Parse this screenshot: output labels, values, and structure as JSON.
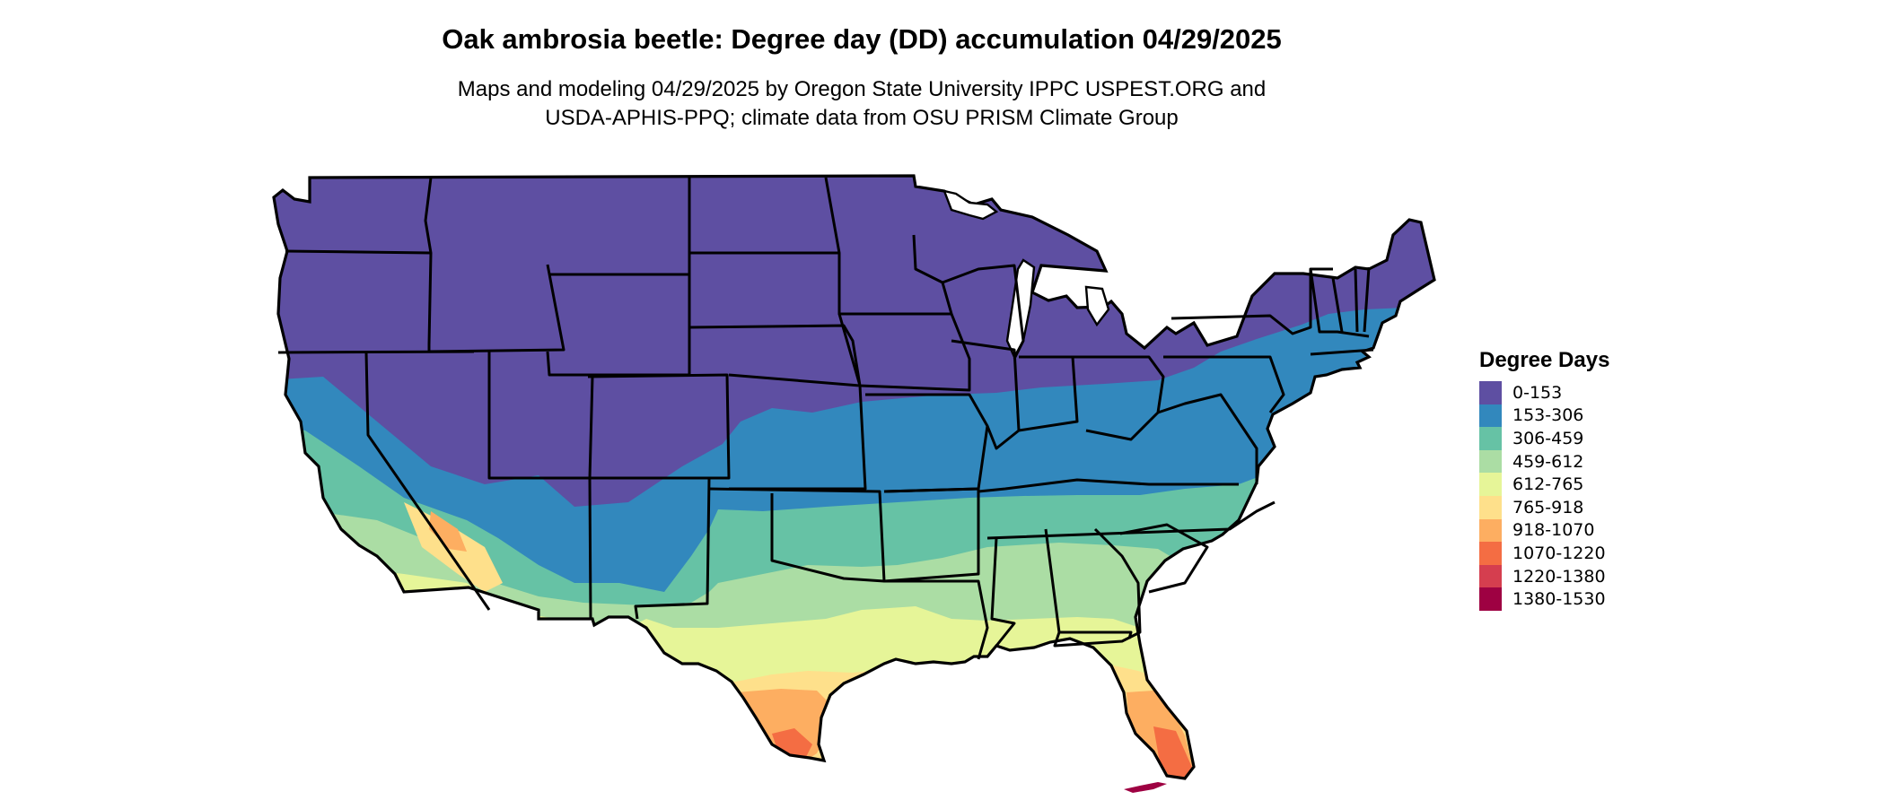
{
  "header": {
    "title": "Oak ambrosia beetle: Degree day (DD) accumulation 04/29/2025",
    "subtitle_line1": "Maps and modeling 04/29/2025 by Oregon State University IPPC USPEST.ORG and",
    "subtitle_line2": "USDA-APHIS-PPQ; climate data from OSU PRISM Climate Group"
  },
  "legend": {
    "title": "Degree Days",
    "items": [
      {
        "label": "0-153",
        "color": "#5e4fa2"
      },
      {
        "label": "153-306",
        "color": "#3288bd"
      },
      {
        "label": "306-459",
        "color": "#66c2a5"
      },
      {
        "label": "459-612",
        "color": "#abdda4"
      },
      {
        "label": "612-765",
        "color": "#e6f598"
      },
      {
        "label": "765-918",
        "color": "#fee08b"
      },
      {
        "label": "918-1070",
        "color": "#fdae61"
      },
      {
        "label": "1070-1220",
        "color": "#f46d43"
      },
      {
        "label": "1220-1380",
        "color": "#d53e4f"
      },
      {
        "label": "1380-1530",
        "color": "#9e0142"
      }
    ]
  },
  "map": {
    "region": "Contiguous United States",
    "border_color": "#000000"
  }
}
